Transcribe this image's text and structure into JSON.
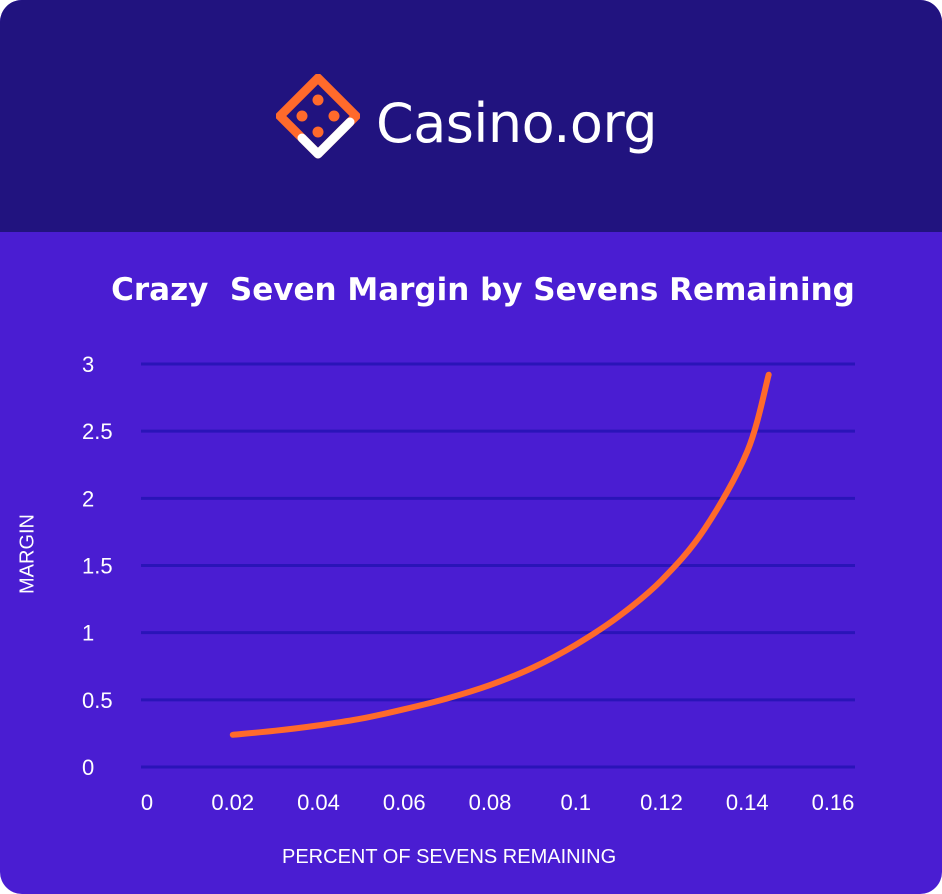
{
  "brand": {
    "name": "Casino.org",
    "logo_icon": "dice-diamond-icon",
    "logo_color": "#ff6a2b"
  },
  "colors": {
    "header_bg": "#21137f",
    "chart_bg": "#4a1dd2",
    "gridline": "#2a14b8",
    "line": "#ff6a2b",
    "text": "#ffffff"
  },
  "chart_data": {
    "type": "line",
    "title": "Crazy  Seven Margin by Sevens Remaining",
    "xlabel": "PERCENT OF SEVENS REMAINING",
    "ylabel": "MARGIN",
    "xlim": [
      0,
      0.16
    ],
    "ylim": [
      0,
      3
    ],
    "x_ticks": [
      "0",
      "0.02",
      "0.04",
      "0.06",
      "0.08",
      "0.1",
      "0.12",
      "0.14",
      "0.16"
    ],
    "y_ticks": [
      "0",
      "0.5",
      "1",
      "1.5",
      "2",
      "2.5",
      "3"
    ],
    "grid": true,
    "legend": "none",
    "series": [
      {
        "x": [
          0.02,
          0.03,
          0.04,
          0.05,
          0.06,
          0.07,
          0.08,
          0.09,
          0.1,
          0.11,
          0.12,
          0.13,
          0.14,
          0.145
        ],
        "y": [
          0.24,
          0.27,
          0.31,
          0.36,
          0.43,
          0.51,
          0.61,
          0.74,
          0.91,
          1.12,
          1.39,
          1.77,
          2.35,
          2.92
        ]
      }
    ]
  }
}
